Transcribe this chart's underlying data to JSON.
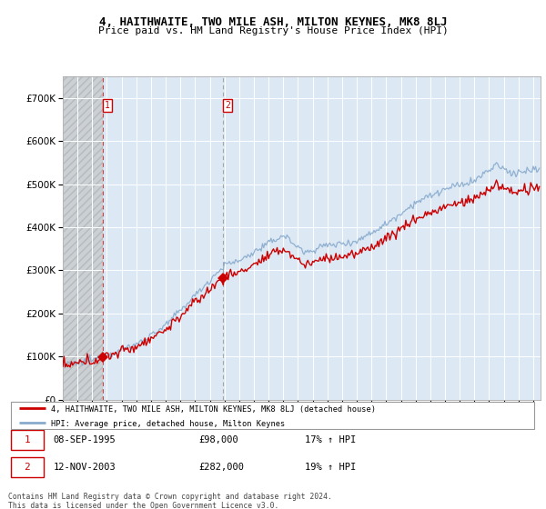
{
  "title": "4, HAITHWAITE, TWO MILE ASH, MILTON KEYNES, MK8 8LJ",
  "subtitle": "Price paid vs. HM Land Registry's House Price Index (HPI)",
  "sale1_label": "08-SEP-1995",
  "sale1_hpi_text": "17% ↑ HPI",
  "sale2_label": "12-NOV-2003",
  "sale2_hpi_text": "19% ↑ HPI",
  "legend_line1": "4, HAITHWAITE, TWO MILE ASH, MILTON KEYNES, MK8 8LJ (detached house)",
  "legend_line2": "HPI: Average price, detached house, Milton Keynes",
  "footer": "Contains HM Land Registry data © Crown copyright and database right 2024.\nThis data is licensed under the Open Government Licence v3.0.",
  "red_line_color": "#cc0000",
  "blue_line_color": "#88aacc",
  "plot_bg": "#dce9f5",
  "hatch_bg": "#c8c8c8",
  "ylim": [
    0,
    750000
  ],
  "xlim_start": 1993.0,
  "xlim_end": 2025.5,
  "sale1_t": 1995.708,
  "sale1_price": 98000,
  "sale2_t": 2003.875,
  "sale2_price": 282000
}
